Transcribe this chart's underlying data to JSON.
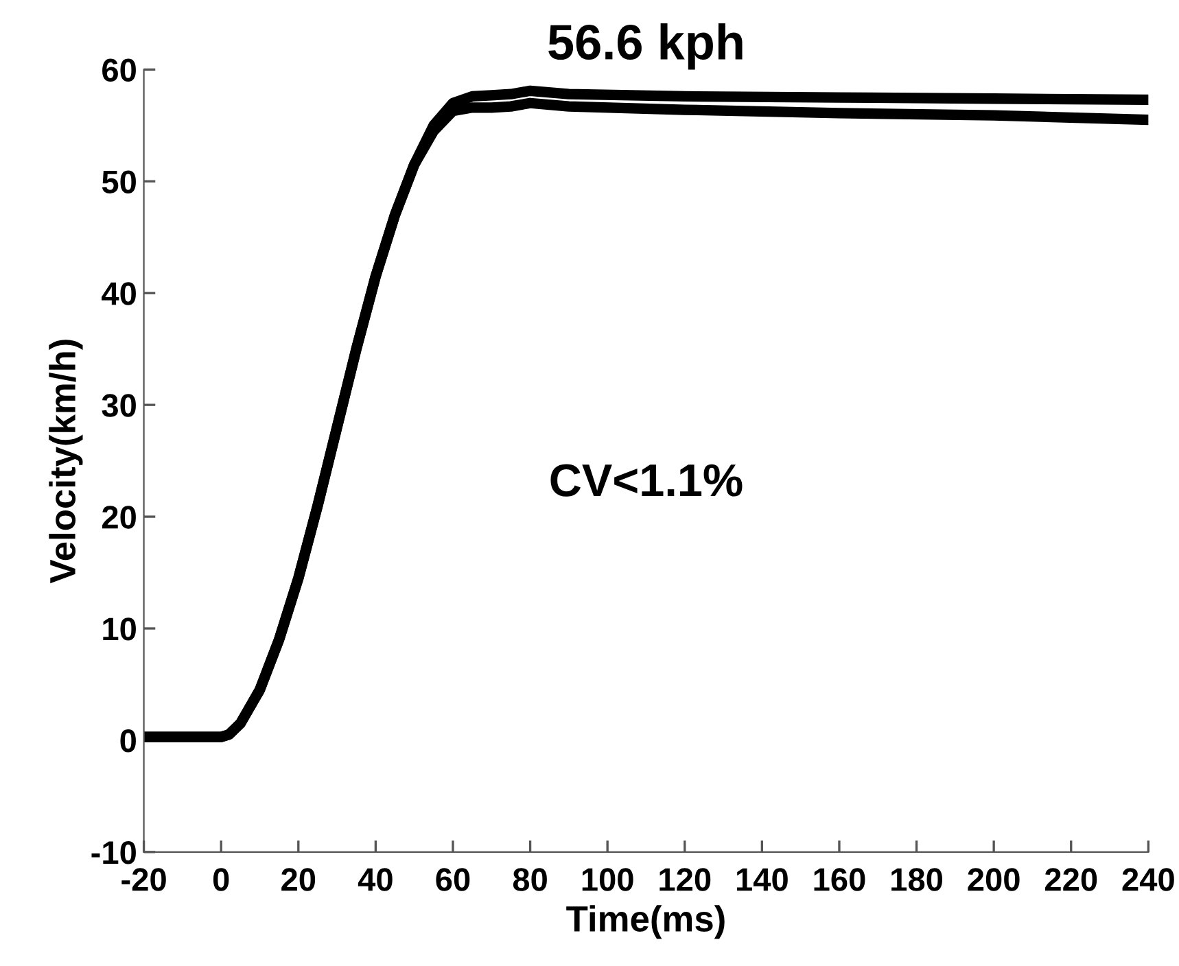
{
  "chart_data": {
    "type": "line",
    "title": "56.6 kph",
    "xlabel": "Time(ms)",
    "ylabel": "Velocity(km/h)",
    "annotations": [
      "CV<1.1%"
    ],
    "xlim": [
      -20,
      240
    ],
    "xticks": [
      -20,
      0,
      20,
      40,
      60,
      80,
      100,
      120,
      140,
      160,
      180,
      200,
      220,
      240
    ],
    "ylim": [
      -10,
      60
    ],
    "yticks": [
      -10,
      0,
      10,
      20,
      30,
      40,
      50,
      60
    ],
    "grid": false,
    "marker": "none",
    "line_style": "solid",
    "series": [
      {
        "color": "#000000",
        "x": [
          -20,
          0,
          2,
          5,
          10,
          15,
          20,
          25,
          30,
          35,
          40,
          45,
          50,
          55,
          60,
          65,
          70,
          75,
          80,
          90,
          120,
          160,
          200,
          240
        ],
        "values": [
          0.3,
          0.3,
          0.5,
          1.5,
          4.5,
          9,
          14.5,
          21,
          28,
          35,
          41.5,
          47,
          51.5,
          55,
          57,
          57.6,
          57.7,
          57.8,
          58.1,
          57.8,
          57.6,
          57.5,
          57.4,
          57.3
        ]
      },
      {
        "color": "#000000",
        "x": [
          -20,
          0,
          2,
          5,
          10,
          15,
          20,
          25,
          30,
          35,
          40,
          45,
          50,
          55,
          60,
          65,
          70,
          75,
          80,
          90,
          120,
          160,
          200,
          240
        ],
        "values": [
          0.3,
          0.3,
          0.5,
          1.5,
          4.5,
          9,
          14.5,
          21,
          28,
          35,
          41.5,
          47,
          51.5,
          54.5,
          56.3,
          56.6,
          56.6,
          56.7,
          57,
          56.7,
          56.4,
          56.1,
          55.9,
          55.5
        ]
      }
    ]
  }
}
